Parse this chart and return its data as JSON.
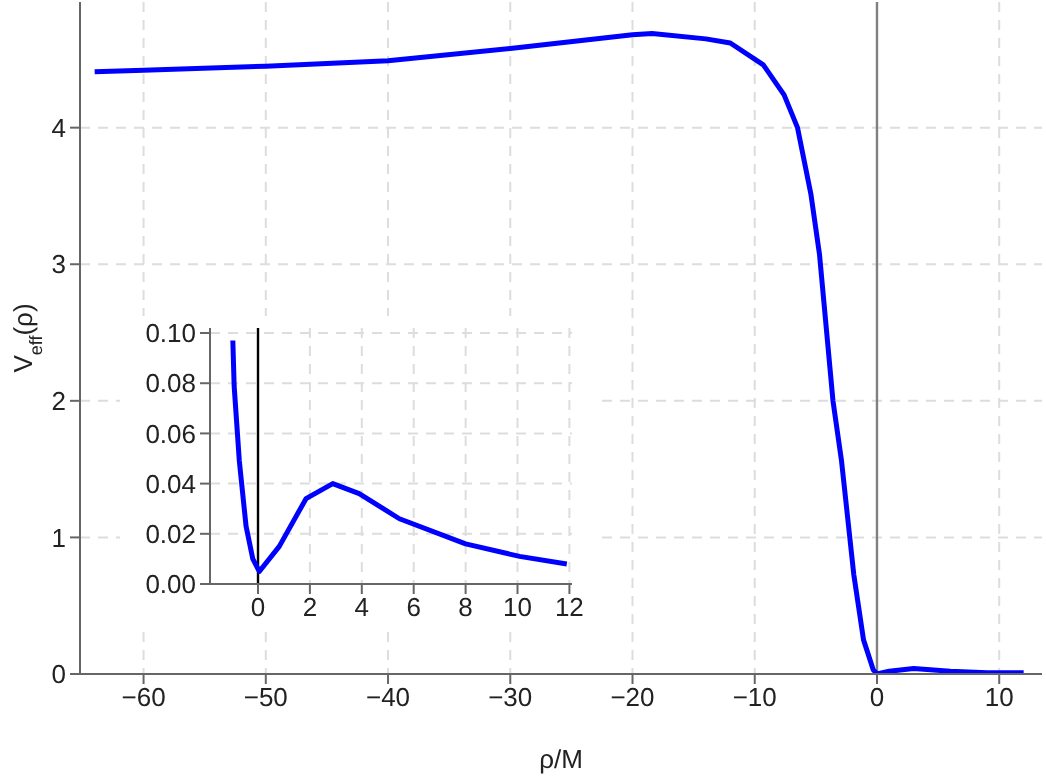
{
  "chart_data": [
    {
      "type": "line",
      "xlabel": "ρ/M",
      "ylabel": "V$_{eff}$(ρ)",
      "xlim": [
        -65.2,
        13.5
      ],
      "ylim": [
        0,
        4.92
      ],
      "xticks": [
        -60,
        -50,
        -40,
        -30,
        -20,
        -10,
        0,
        10
      ],
      "yticks": [
        0,
        1,
        2,
        3,
        4
      ],
      "grid": true,
      "line_style": "solid",
      "marker": "none",
      "ref_lines": [
        {
          "axis": "x",
          "value": 0,
          "color": "#808080"
        }
      ],
      "series": [
        {
          "color": "#0000ff",
          "x": [
            -64,
            -60,
            -50,
            -40,
            -30,
            -20,
            -18.4,
            -14,
            -12,
            -9.3,
            -7.6,
            -6.5,
            -5.4,
            -4.7,
            -3.6,
            -2.9,
            -1.9,
            -1.1,
            -0.3,
            0,
            1,
            3,
            6,
            9,
            12
          ],
          "values": [
            4.41,
            4.42,
            4.45,
            4.49,
            4.58,
            4.68,
            4.69,
            4.65,
            4.62,
            4.46,
            4.24,
            4.0,
            3.51,
            3.07,
            2.0,
            1.56,
            0.73,
            0.25,
            0.03,
            0,
            0.02,
            0.04,
            0.02,
            0.01,
            0.01
          ]
        }
      ]
    },
    {
      "type": "line",
      "xlim": [
        -1.85,
        12.1
      ],
      "ylim": [
        0,
        0.102
      ],
      "xticks": [
        0,
        2,
        4,
        6,
        8,
        10,
        12
      ],
      "yticks": [
        {
          "value": 0,
          "label": "0.00"
        },
        {
          "value": 0.02,
          "label": "0.02"
        },
        {
          "value": 0.04,
          "label": "0.04"
        },
        {
          "value": 0.06,
          "label": "0.06"
        },
        {
          "value": 0.08,
          "label": "0.08"
        },
        {
          "value": 0.1,
          "label": "0.10"
        }
      ],
      "grid": true,
      "line_style": "solid",
      "marker": "none",
      "ref_lines": [
        {
          "axis": "x",
          "value": 0,
          "color": "#000000"
        }
      ],
      "series": [
        {
          "color": "#0000ff",
          "x": [
            -0.97,
            -0.92,
            -0.72,
            -0.46,
            -0.2,
            0.05,
            0.82,
            1.85,
            2.88,
            3.9,
            5.45,
            8.0,
            10.08,
            11.9
          ],
          "values": [
            0.097,
            0.079,
            0.049,
            0.023,
            0.01,
            0.005,
            0.015,
            0.034,
            0.04,
            0.036,
            0.026,
            0.016,
            0.011,
            0.008
          ]
        }
      ]
    }
  ]
}
